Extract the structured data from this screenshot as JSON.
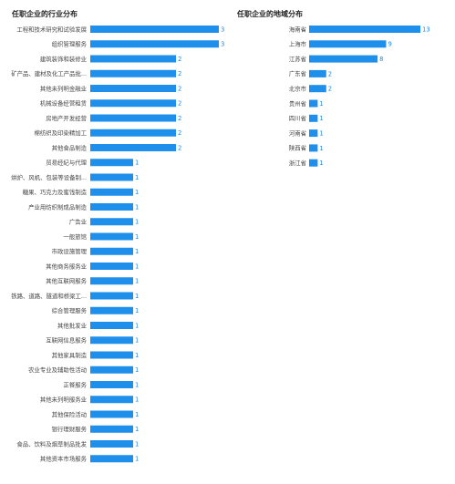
{
  "chart_data": [
    {
      "type": "bar",
      "orientation": "horizontal",
      "title": "任职企业的行业分布",
      "categories": [
        "工程和技术研究和试验发展",
        "组织管理服务",
        "建筑装饰和装修业",
        "矿产品、建材及化工产品批...",
        "其他未列明金融业",
        "机械设备经营租赁",
        "房地产开发经营",
        "棉纺织及印染精加工",
        "其他食品制造",
        "贸易经纪与代理",
        "烘炉、风机、包装等设备制...",
        "糖果、巧克力及蜜饯制造",
        "产业用纺织制成品制造",
        "广告业",
        "一般旅馆",
        "市政设施管理",
        "其他商务服务业",
        "其他互联网服务",
        "铁路、道路、隧道和桥梁工...",
        "综合管理服务",
        "其他批发业",
        "互联网信息服务",
        "其他家具制造",
        "农业专业及辅助性活动",
        "正餐服务",
        "其他未列明服务业",
        "其他保险活动",
        "银行理财服务",
        "食品、饮料及烟草制品批发",
        "其他资本市场服务"
      ],
      "values": [
        3,
        3,
        2,
        2,
        2,
        2,
        2,
        2,
        2,
        1,
        1,
        1,
        1,
        1,
        1,
        1,
        1,
        1,
        1,
        1,
        1,
        1,
        1,
        1,
        1,
        1,
        1,
        1,
        1,
        1
      ],
      "xlim": [
        0,
        3
      ],
      "grid": false,
      "color": "#1e8fea"
    },
    {
      "type": "bar",
      "orientation": "horizontal",
      "title": "任职企业的地域分布",
      "categories": [
        "海南省",
        "上海市",
        "江苏省",
        "广东省",
        "北京市",
        "贵州省",
        "四川省",
        "河南省",
        "陕西省",
        "浙江省"
      ],
      "values": [
        13,
        9,
        8,
        2,
        2,
        1,
        1,
        1,
        1,
        1
      ],
      "xlim": [
        0,
        13
      ],
      "grid": false,
      "color": "#1e8fea"
    }
  ]
}
